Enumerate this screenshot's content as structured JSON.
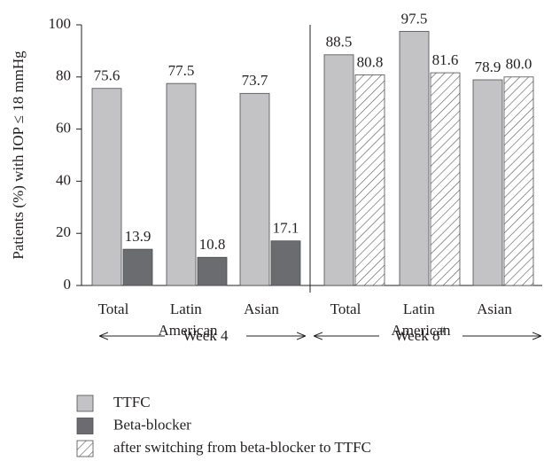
{
  "chart_data": {
    "type": "bar",
    "y_label": "Patients (%) with IOP ≤ 18 mmHg",
    "categories": [
      "Total",
      "Latin American",
      "Asian",
      "Total",
      "Latin American",
      "Asian"
    ],
    "groups": [
      {
        "label": "Week 4"
      },
      {
        "label": "Week 8",
        "superscript": "#"
      }
    ],
    "series": [
      {
        "name": "TTFC",
        "color": "#c3c3c5",
        "values": [
          75.6,
          77.5,
          73.7,
          88.5,
          97.5,
          78.9
        ]
      },
      {
        "name": "Beta-blocker",
        "color": "#6b6c6f",
        "values": [
          13.9,
          10.8,
          17.1,
          null,
          null,
          null
        ]
      },
      {
        "name": "after switching from beta-blocker to TTFC",
        "color": "#555555",
        "pattern": "hatch",
        "values": [
          null,
          null,
          null,
          80.8,
          81.6,
          80.0
        ],
        "value_labels": [
          null,
          null,
          null,
          "80.8",
          "81.6",
          "80.0"
        ]
      }
    ],
    "ylim": [
      0,
      100
    ],
    "yticks": [
      0,
      20,
      40,
      60,
      80,
      100
    ]
  }
}
